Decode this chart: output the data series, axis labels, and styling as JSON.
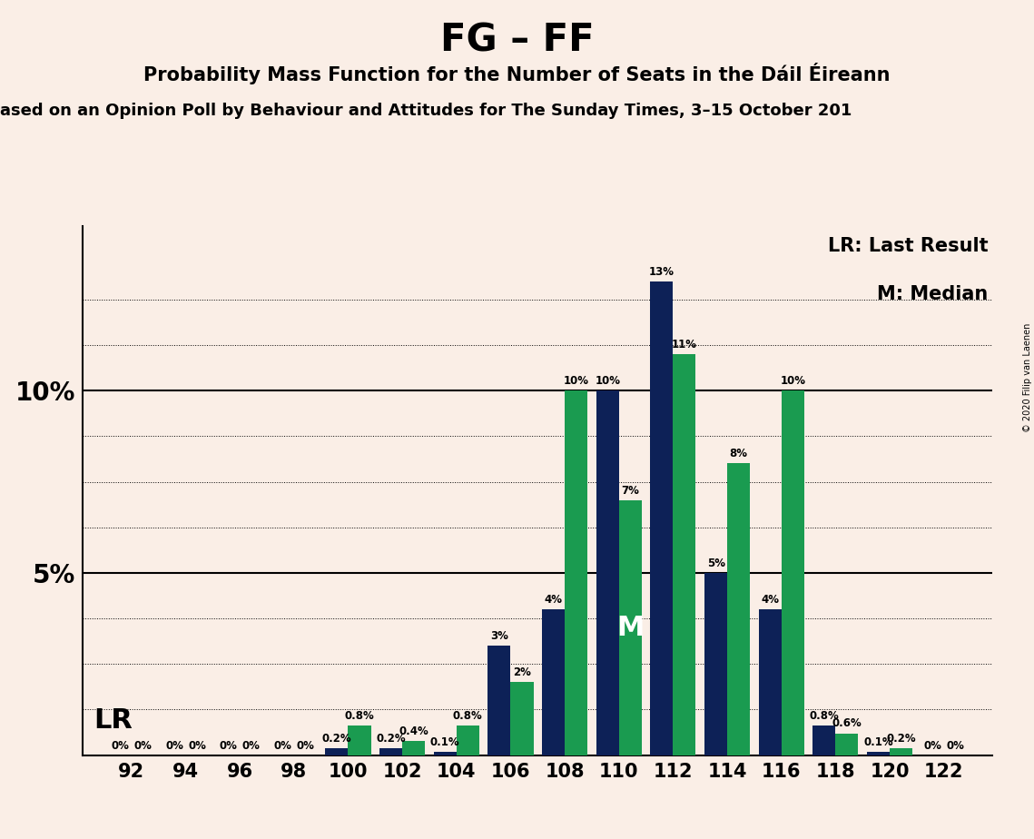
{
  "title": "FG – FF",
  "subtitle1": "Probability Mass Function for the Number of Seats in the Dáil Éireann",
  "subtitle2": "ased on an Opinion Poll by Behaviour and Attitudes for The Sunday Times, 3–15 October 201",
  "copyright": "© 2020 Filip van Laenen",
  "seats": [
    92,
    94,
    96,
    98,
    100,
    102,
    104,
    106,
    108,
    110,
    112,
    114,
    116,
    118,
    120,
    122
  ],
  "fg_values": [
    0.0,
    0.0,
    0.0,
    0.0,
    0.2,
    0.2,
    0.1,
    3.0,
    4.0,
    10.0,
    13.0,
    5.0,
    4.0,
    0.8,
    0.1,
    0.0
  ],
  "ff_values": [
    0.0,
    0.0,
    0.0,
    0.0,
    0.8,
    0.4,
    0.8,
    2.0,
    10.0,
    7.0,
    11.0,
    8.0,
    10.0,
    0.6,
    0.2,
    0.0
  ],
  "fg_labels": [
    "0%",
    "0%",
    "0%",
    "0%",
    "0.2%",
    "0.2%",
    "0.1%",
    "3%",
    "4%",
    "10%",
    "13%",
    "5%",
    "4%",
    "0.8%",
    "0.1%",
    "0%"
  ],
  "ff_labels": [
    "0%",
    "0%",
    "0%",
    "0%",
    "0.8%",
    "0.4%",
    "0.8%",
    "2%",
    "10%",
    "7%",
    "11%",
    "8%",
    "10%",
    "0.6%",
    "0.2%",
    "0%"
  ],
  "fg_color": "#0d2157",
  "ff_color": "#1a9b50",
  "background_color": "#faeee6",
  "lr_seat_idx": 0,
  "median_seat_idx": 9,
  "legend_lr": "LR: Last Result",
  "legend_m": "M: Median",
  "lr_label": "LR",
  "median_label": "M",
  "ylabel_10": "10%",
  "ylabel_5": "5%",
  "ylim": [
    0,
    14.5
  ],
  "bar_width": 0.42,
  "title_fontsize": 30,
  "subtitle1_fontsize": 15,
  "subtitle2_fontsize": 13,
  "label_fontsize": 8.5,
  "ytick_fontsize": 20,
  "xtick_fontsize": 15,
  "legend_fontsize": 15,
  "lr_fontsize": 22,
  "median_fontsize": 22
}
